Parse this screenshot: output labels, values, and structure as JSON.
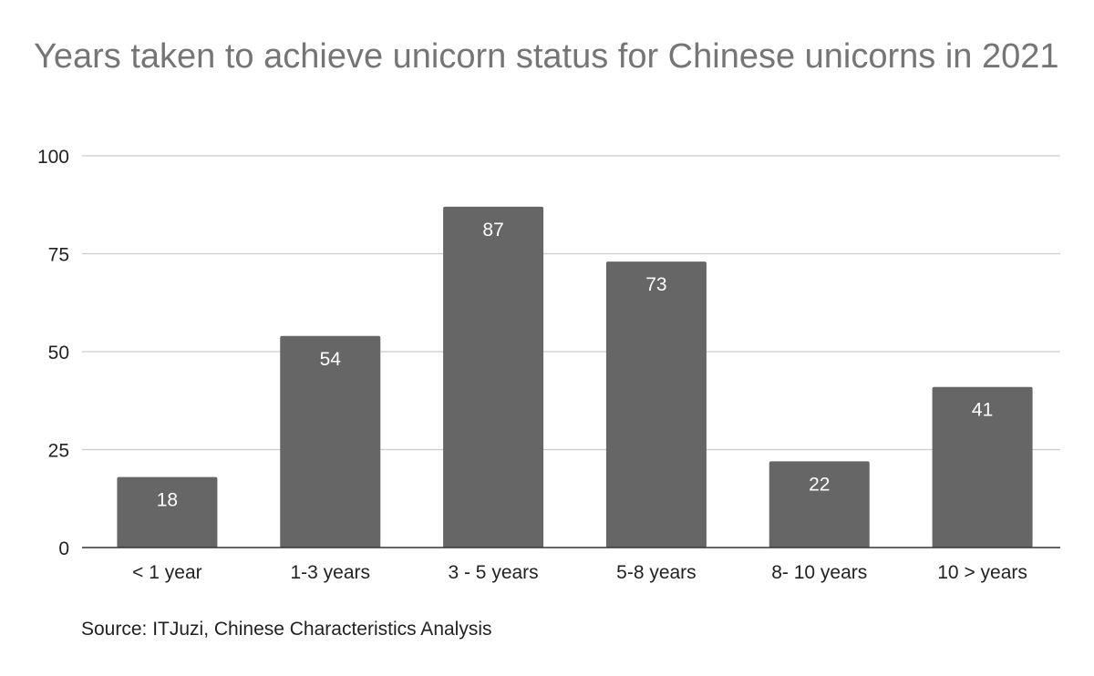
{
  "chart_data": {
    "type": "bar",
    "title": "Years taken to achieve unicorn status for Chinese unicorns in 2021",
    "categories": [
      "< 1 year",
      "1-3 years",
      "3 - 5 years",
      "5-8 years",
      "8- 10 years",
      "10 > years"
    ],
    "values": [
      18,
      54,
      87,
      73,
      22,
      41
    ],
    "data_labels": [
      "18",
      "54",
      "87",
      "73",
      "22",
      "41"
    ],
    "xlabel": "",
    "ylabel": "",
    "ylim": [
      0,
      100
    ],
    "yticks": [
      "0",
      "25",
      "50",
      "75",
      "100"
    ],
    "grid": true,
    "legend": "none",
    "colors": {
      "bar": "#666666",
      "grid": "#cccccc",
      "axis": "#333333",
      "title": "#757575",
      "label_text": "#ffffff",
      "tick_text": "#222222"
    }
  },
  "source_note": "Source: ITJuzi, Chinese Characteristics Analysis"
}
